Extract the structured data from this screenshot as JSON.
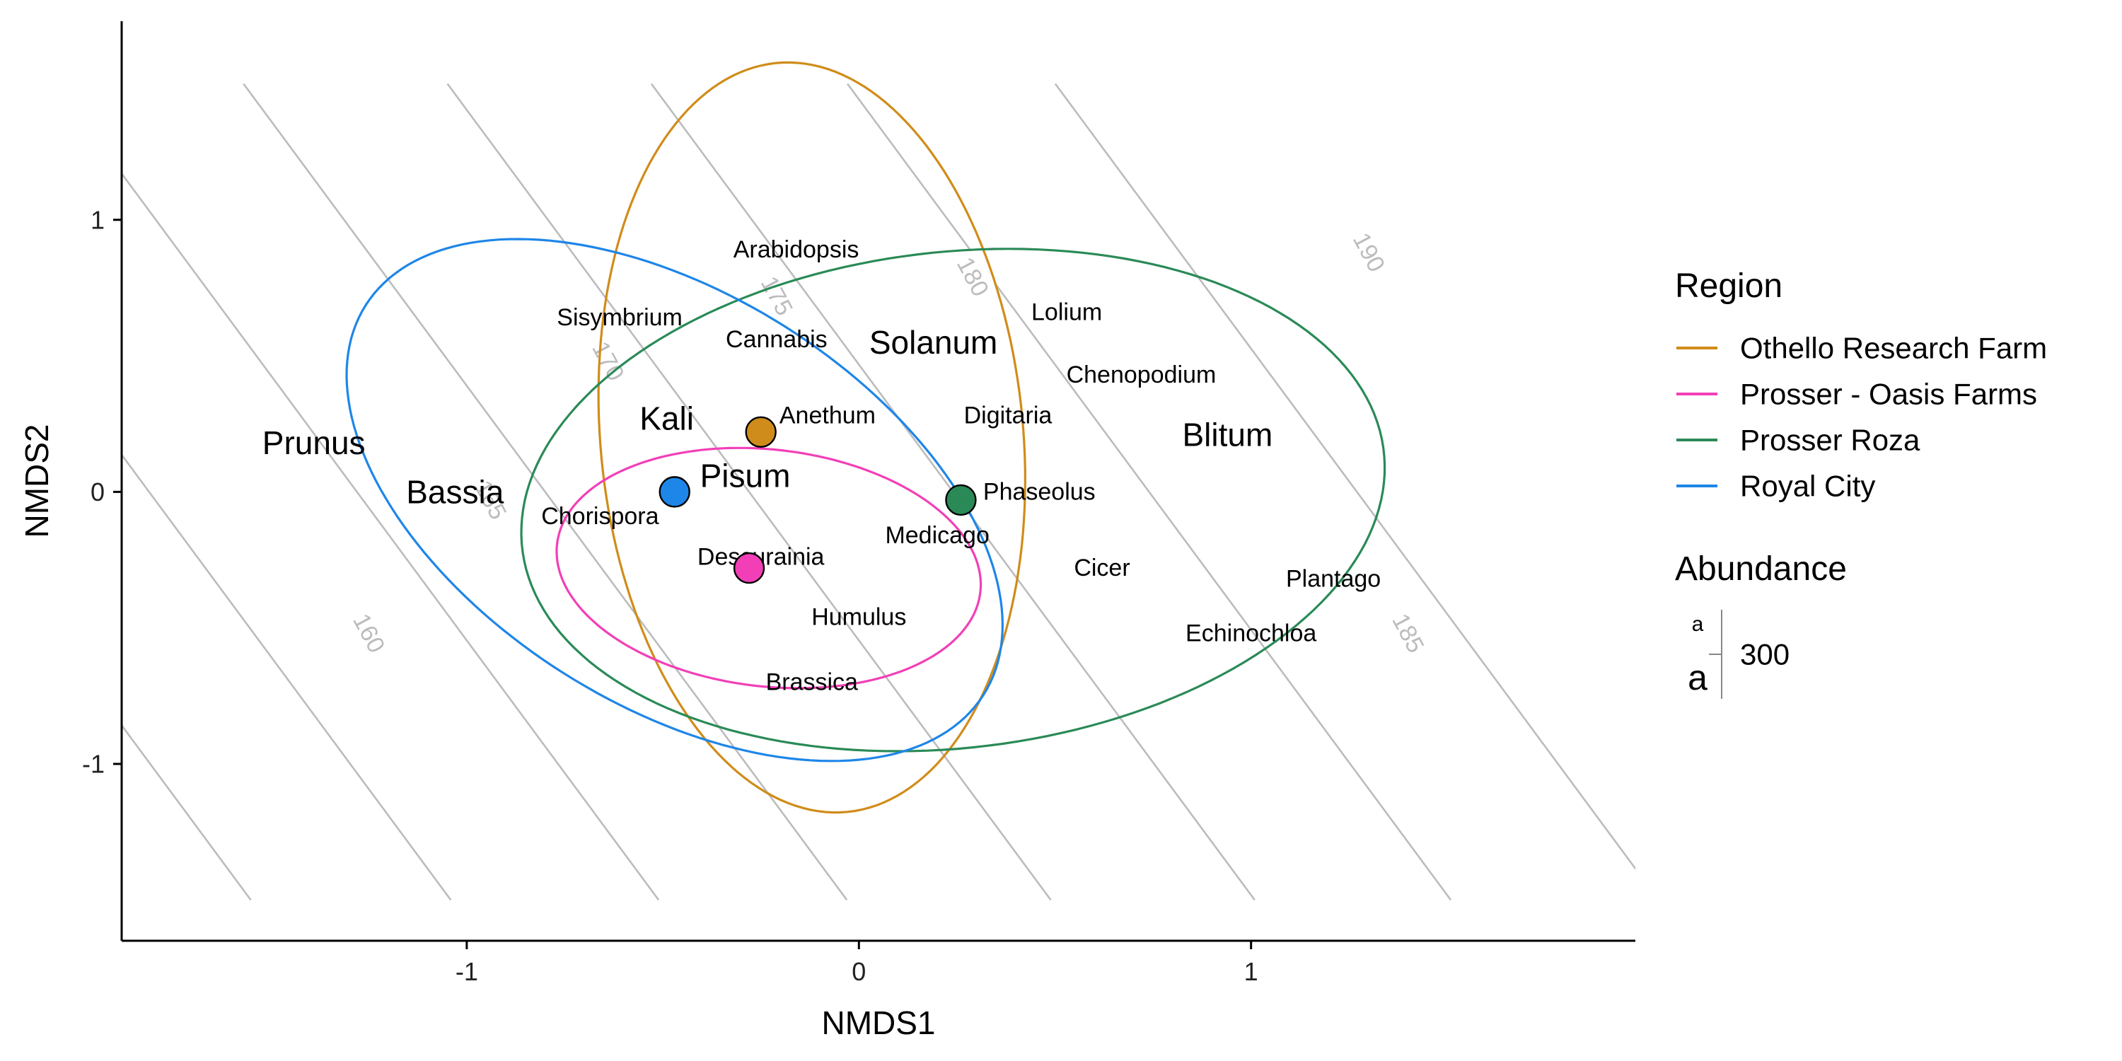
{
  "chart_data": {
    "type": "scatter",
    "title": "",
    "xlabel": "NMDS1",
    "ylabel": "NMDS2",
    "xlim": [
      -1.88,
      1.98
    ],
    "ylim": [
      -1.65,
      1.73
    ],
    "xticks": [
      -1,
      0,
      1
    ],
    "yticks": [
      -1,
      0,
      1
    ],
    "xtick_labels": [
      "-1",
      "0",
      "1"
    ],
    "ytick_labels": [
      "-1",
      "0",
      "1"
    ],
    "grid": false,
    "legend_position": "right",
    "contours": {
      "color": "#bcbcbc",
      "slope": -1.95,
      "line_x_intercepts": [
        -2.32,
        -1.81,
        -1.28,
        -0.8,
        -0.28,
        0.24,
        0.74,
        1.27
      ],
      "y_range": [
        -1.5,
        1.5
      ],
      "labels": [
        {
          "text": "160",
          "x": -1.25,
          "y": -0.52,
          "angle": 62
        },
        {
          "text": "165",
          "x": -0.94,
          "y": -0.03,
          "angle": 62
        },
        {
          "text": "170",
          "x": -0.64,
          "y": 0.48,
          "angle": 62
        },
        {
          "text": "175",
          "x": -0.21,
          "y": 0.72,
          "angle": 62
        },
        {
          "text": "180",
          "x": 0.29,
          "y": 0.79,
          "angle": 62
        },
        {
          "text": "185",
          "x": 1.4,
          "y": -0.52,
          "angle": 62
        },
        {
          "text": "190",
          "x": 1.3,
          "y": 0.88,
          "angle": 62
        }
      ]
    },
    "series": [
      {
        "name": "Othello Research Farm",
        "color": "#d08c1a",
        "centroid": [
          -0.25,
          0.22
        ],
        "ellipse": {
          "cx": -0.12,
          "cy": 0.2,
          "rx": 1.38,
          "ry": 0.54,
          "angle": -87
        }
      },
      {
        "name": "Prosser - Oasis Farms",
        "color": "#f23fb7",
        "centroid": [
          -0.28,
          -0.28
        ],
        "ellipse": {
          "cx": -0.23,
          "cy": -0.28,
          "rx": 0.55,
          "ry": 0.43,
          "angle": -17
        }
      },
      {
        "name": "Prosser Roza",
        "color": "#2a8a57",
        "centroid": [
          0.26,
          -0.03
        ],
        "ellipse": {
          "cx": 0.24,
          "cy": -0.03,
          "rx": 1.12,
          "ry": 0.9,
          "angle": 18
        }
      },
      {
        "name": "Royal City",
        "color": "#1e86e8",
        "centroid": [
          -0.47,
          0.0
        ],
        "ellipse": {
          "cx": -0.47,
          "cy": -0.03,
          "rx": 1.1,
          "ry": 0.64,
          "angle": -53
        }
      }
    ],
    "species": [
      {
        "name": "Arabidopsis",
        "x": -0.16,
        "y": 0.89,
        "size": "small"
      },
      {
        "name": "Sisymbrium",
        "x": -0.61,
        "y": 0.64,
        "size": "small"
      },
      {
        "name": "Cannabis",
        "x": -0.21,
        "y": 0.56,
        "size": "small"
      },
      {
        "name": "Solanum",
        "x": 0.19,
        "y": 0.55,
        "size": "large"
      },
      {
        "name": "Lolium",
        "x": 0.53,
        "y": 0.66,
        "size": "small"
      },
      {
        "name": "Chenopodium",
        "x": 0.72,
        "y": 0.43,
        "size": "small"
      },
      {
        "name": "Prunus",
        "x": -1.39,
        "y": 0.18,
        "size": "large"
      },
      {
        "name": "Kali",
        "x": -0.49,
        "y": 0.27,
        "size": "large"
      },
      {
        "name": "Anethum",
        "x": -0.08,
        "y": 0.28,
        "size": "small"
      },
      {
        "name": "Digitaria",
        "x": 0.38,
        "y": 0.28,
        "size": "small"
      },
      {
        "name": "Blitum",
        "x": 0.94,
        "y": 0.21,
        "size": "large"
      },
      {
        "name": "Bassia",
        "x": -1.03,
        "y": 0.0,
        "size": "large"
      },
      {
        "name": "Pisum",
        "x": -0.29,
        "y": 0.06,
        "size": "large"
      },
      {
        "name": "Phaseolus",
        "x": 0.46,
        "y": 0.0,
        "size": "small"
      },
      {
        "name": "Chorispora",
        "x": -0.66,
        "y": -0.09,
        "size": "small"
      },
      {
        "name": "Medicago",
        "x": 0.2,
        "y": -0.16,
        "size": "small"
      },
      {
        "name": "Descurainia",
        "x": -0.25,
        "y": -0.24,
        "size": "small"
      },
      {
        "name": "Cicer",
        "x": 0.62,
        "y": -0.28,
        "size": "small"
      },
      {
        "name": "Plantago",
        "x": 1.21,
        "y": -0.32,
        "size": "small"
      },
      {
        "name": "Humulus",
        "x": 0.0,
        "y": -0.46,
        "size": "small"
      },
      {
        "name": "Echinochloa",
        "x": 1.0,
        "y": -0.52,
        "size": "small"
      },
      {
        "name": "Brassica",
        "x": -0.12,
        "y": -0.7,
        "size": "small"
      }
    ],
    "legend": {
      "region_title": "Region",
      "abundance_title": "Abundance",
      "abundance_key_small": "a",
      "abundance_key_large": "a",
      "abundance_value": "300"
    }
  }
}
